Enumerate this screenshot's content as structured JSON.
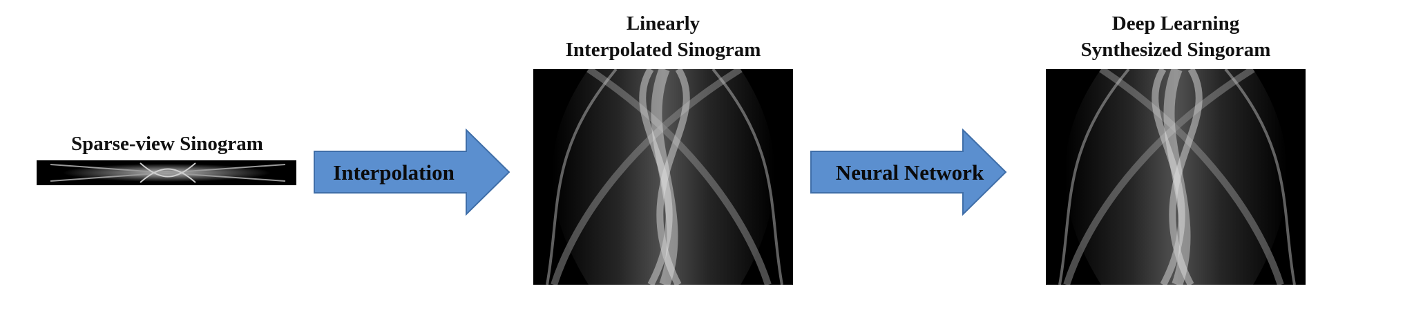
{
  "sparse": {
    "title": "Sparse-view Sinogram"
  },
  "arrow1": {
    "label": "Interpolation",
    "fill": "#5b8fcf",
    "stroke": "#3f6ea8"
  },
  "linear": {
    "title_line1": "Linearly",
    "title_line2": "Interpolated Sinogram"
  },
  "arrow2": {
    "label": "Neural Network",
    "fill": "#5b8fcf",
    "stroke": "#3f6ea8"
  },
  "deep": {
    "title_line1": "Deep Learning",
    "title_line2": "Synthesized Singoram"
  }
}
